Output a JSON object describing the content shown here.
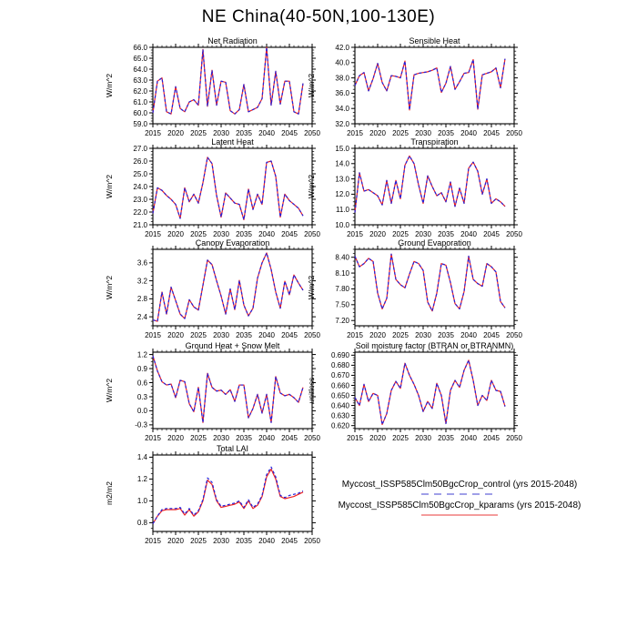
{
  "title": "NE China(40-50N,100-130E)",
  "colors": {
    "control": "#2222dd",
    "kparams": "#ee2222",
    "axis": "#000000",
    "legend_control_sample": "#9f9fe8",
    "legend_kparams_sample": "#f49c9c"
  },
  "legend": {
    "entries": [
      {
        "name": "control",
        "label": "Myccost_ISSP585Clm50BgcCrop_control (yrs 2015-2048)",
        "line_style": "dashed"
      },
      {
        "name": "kparams",
        "label": "Myccost_ISSP585Clm50BgcCrop_kparams (yrs 2015-2048)",
        "line_style": "solid"
      }
    ]
  },
  "x_axis": {
    "min": 2015,
    "max": 2050,
    "tick_step": 5,
    "data_start": 2015,
    "data_end": 2048,
    "ticks": [
      2015,
      2020,
      2025,
      2030,
      2035,
      2040,
      2045,
      2050
    ]
  },
  "chart_data": [
    {
      "id": "net-radiation",
      "type": "line",
      "title": "Net Radiation",
      "ylabel": "W/m^2",
      "ylim": [
        59,
        66
      ],
      "yticks": [
        59,
        60,
        61,
        62,
        63,
        64,
        65,
        66
      ],
      "ytick_labels": [
        "59.0",
        "60.0",
        "61.0",
        "62.0",
        "63.0",
        "64.0",
        "65.0",
        "66.0"
      ],
      "series": [
        {
          "name": "control",
          "values": [
            60.0,
            62.9,
            63.2,
            60.1,
            59.9,
            62.4,
            60.4,
            60.1,
            61.0,
            61.2,
            60.7,
            65.8,
            60.6,
            63.9,
            60.7,
            62.9,
            62.8,
            60.2,
            59.9,
            60.3,
            62.6,
            60.1,
            60.3,
            60.5,
            61.3,
            66.0,
            60.7,
            63.8,
            60.8,
            62.9,
            62.9,
            60.1,
            59.9,
            62.7
          ]
        },
        {
          "name": "kparams",
          "values": [
            60.0,
            62.9,
            63.2,
            60.1,
            59.9,
            62.4,
            60.4,
            60.1,
            61.0,
            61.2,
            60.7,
            65.8,
            60.6,
            63.9,
            60.7,
            62.9,
            62.8,
            60.2,
            59.9,
            60.3,
            62.6,
            60.1,
            60.3,
            60.5,
            61.3,
            66.0,
            60.7,
            63.8,
            60.8,
            62.9,
            62.9,
            60.1,
            59.9,
            62.7
          ]
        }
      ]
    },
    {
      "id": "sensible-heat",
      "type": "line",
      "title": "Sensible Heat",
      "ylabel": "W/m^2",
      "ylim": [
        32,
        42
      ],
      "yticks": [
        32,
        34,
        36,
        38,
        40,
        42
      ],
      "ytick_labels": [
        "32.0",
        "34.0",
        "36.0",
        "38.0",
        "40.0",
        "42.0"
      ],
      "series": [
        {
          "name": "control",
          "values": [
            37.0,
            38.3,
            38.7,
            36.3,
            37.9,
            39.9,
            37.4,
            36.3,
            38.3,
            38.2,
            38.0,
            40.2,
            33.8,
            38.4,
            38.6,
            38.7,
            38.8,
            39.0,
            39.3,
            36.1,
            37.3,
            39.5,
            36.5,
            37.5,
            38.6,
            38.7,
            40.4,
            33.9,
            38.4,
            38.6,
            38.8,
            39.3,
            36.7,
            40.5
          ]
        },
        {
          "name": "kparams",
          "values": [
            37.0,
            38.3,
            38.7,
            36.3,
            37.9,
            39.9,
            37.4,
            36.3,
            38.3,
            38.2,
            38.0,
            40.2,
            33.8,
            38.4,
            38.6,
            38.7,
            38.8,
            39.0,
            39.3,
            36.1,
            37.3,
            39.5,
            36.5,
            37.5,
            38.6,
            38.7,
            40.4,
            33.9,
            38.4,
            38.6,
            38.8,
            39.3,
            36.7,
            40.5
          ]
        }
      ]
    },
    {
      "id": "latent-heat",
      "type": "line",
      "title": "Latent Heat",
      "ylabel": "W/m^2",
      "ylim": [
        21,
        27
      ],
      "yticks": [
        21,
        22,
        23,
        24,
        25,
        26,
        27
      ],
      "ytick_labels": [
        "21.0",
        "22.0",
        "23.0",
        "24.0",
        "25.0",
        "26.0",
        "27.0"
      ],
      "series": [
        {
          "name": "control",
          "values": [
            21.9,
            23.9,
            23.7,
            23.3,
            23.0,
            22.6,
            21.5,
            23.9,
            22.8,
            23.4,
            22.7,
            24.3,
            26.3,
            25.8,
            23.3,
            21.6,
            23.5,
            23.1,
            22.7,
            22.6,
            21.4,
            23.8,
            22.2,
            23.4,
            22.6,
            25.9,
            26.0,
            24.8,
            21.6,
            23.4,
            22.9,
            22.6,
            22.3,
            21.7
          ]
        },
        {
          "name": "kparams",
          "values": [
            21.9,
            23.9,
            23.7,
            23.3,
            23.0,
            22.6,
            21.5,
            23.9,
            22.8,
            23.4,
            22.7,
            24.3,
            26.3,
            25.8,
            23.3,
            21.6,
            23.5,
            23.1,
            22.7,
            22.6,
            21.4,
            23.8,
            22.2,
            23.4,
            22.6,
            25.9,
            26.0,
            24.8,
            21.6,
            23.4,
            22.9,
            22.6,
            22.3,
            21.7
          ]
        }
      ]
    },
    {
      "id": "transpiration",
      "type": "line",
      "title": "Transpiration",
      "ylabel": "W/m^2",
      "ylim": [
        10,
        15
      ],
      "yticks": [
        10,
        11,
        12,
        13,
        14,
        15
      ],
      "ytick_labels": [
        "10.0",
        "11.0",
        "12.0",
        "13.0",
        "14.0",
        "15.0"
      ],
      "series": [
        {
          "name": "control",
          "values": [
            10.8,
            13.4,
            12.2,
            12.3,
            12.1,
            11.9,
            11.3,
            12.9,
            11.4,
            12.9,
            11.7,
            13.9,
            14.5,
            14.0,
            12.6,
            11.4,
            13.2,
            12.5,
            11.9,
            12.1,
            11.5,
            12.8,
            11.2,
            12.4,
            11.4,
            13.7,
            14.1,
            13.5,
            12.0,
            13.0,
            11.4,
            11.7,
            11.5,
            11.2
          ]
        },
        {
          "name": "kparams",
          "values": [
            10.8,
            13.4,
            12.2,
            12.3,
            12.1,
            11.9,
            11.3,
            12.9,
            11.4,
            12.9,
            11.7,
            13.9,
            14.5,
            14.0,
            12.6,
            11.4,
            13.2,
            12.5,
            11.9,
            12.1,
            11.5,
            12.8,
            11.2,
            12.4,
            11.4,
            13.7,
            14.1,
            13.5,
            12.0,
            13.0,
            11.4,
            11.7,
            11.5,
            11.2
          ]
        }
      ]
    },
    {
      "id": "canopy-evaporation",
      "type": "line",
      "title": "Canopy Evaporation",
      "ylabel": "W/m^2",
      "ylim": [
        2.2,
        3.9
      ],
      "yticks": [
        2.4,
        2.8,
        3.2,
        3.6
      ],
      "ytick_labels": [
        "2.4",
        "2.8",
        "3.2",
        "3.6"
      ],
      "series": [
        {
          "name": "control",
          "values": [
            2.33,
            2.3,
            2.95,
            2.46,
            3.06,
            2.76,
            2.46,
            2.36,
            2.78,
            2.62,
            2.55,
            3.1,
            3.66,
            3.56,
            3.2,
            2.86,
            2.46,
            3.02,
            2.56,
            3.21,
            2.66,
            2.42,
            2.59,
            3.26,
            3.6,
            3.82,
            3.45,
            2.95,
            2.59,
            3.19,
            2.89,
            3.33,
            3.15,
            2.99
          ]
        },
        {
          "name": "kparams",
          "values": [
            2.33,
            2.3,
            2.95,
            2.46,
            3.06,
            2.76,
            2.46,
            2.36,
            2.78,
            2.62,
            2.55,
            3.1,
            3.66,
            3.56,
            3.2,
            2.86,
            2.46,
            3.02,
            2.56,
            3.21,
            2.66,
            2.42,
            2.59,
            3.26,
            3.6,
            3.82,
            3.45,
            2.95,
            2.59,
            3.19,
            2.89,
            3.33,
            3.15,
            2.99
          ]
        }
      ]
    },
    {
      "id": "ground-evaporation",
      "type": "line",
      "title": "Ground Evaporation",
      "ylabel": "W/m^2",
      "ylim": [
        7.1,
        8.55
      ],
      "yticks": [
        7.2,
        7.5,
        7.8,
        8.1,
        8.4
      ],
      "ytick_labels": [
        "7.20",
        "7.50",
        "7.80",
        "8.10",
        "8.40"
      ],
      "series": [
        {
          "name": "control",
          "values": [
            8.42,
            8.22,
            8.28,
            8.38,
            8.32,
            7.72,
            7.42,
            7.62,
            8.46,
            7.98,
            7.88,
            7.82,
            8.08,
            8.32,
            8.28,
            8.15,
            7.55,
            7.38,
            7.72,
            8.28,
            8.25,
            7.92,
            7.52,
            7.42,
            7.75,
            8.42,
            7.98,
            7.9,
            7.85,
            8.28,
            8.22,
            8.12,
            7.56,
            7.44
          ]
        },
        {
          "name": "kparams",
          "values": [
            8.42,
            8.22,
            8.28,
            8.38,
            8.32,
            7.72,
            7.42,
            7.62,
            8.46,
            7.98,
            7.88,
            7.82,
            8.08,
            8.32,
            8.28,
            8.15,
            7.55,
            7.38,
            7.72,
            8.28,
            8.25,
            7.92,
            7.52,
            7.42,
            7.75,
            8.42,
            7.98,
            7.9,
            7.85,
            8.28,
            8.22,
            8.12,
            7.56,
            7.44
          ]
        }
      ]
    },
    {
      "id": "ground-heat-snow-melt",
      "type": "line",
      "title": "Ground Heat + Snow Melt",
      "ylabel": "W/m^2",
      "ylim": [
        -0.38,
        1.25
      ],
      "yticks": [
        -0.3,
        0.0,
        0.3,
        0.6,
        0.9,
        1.2
      ],
      "ytick_labels": [
        "-0.3",
        "0.0",
        "0.3",
        "0.6",
        "0.9",
        "1.2"
      ],
      "series": [
        {
          "name": "control",
          "values": [
            1.17,
            0.85,
            0.62,
            0.55,
            0.57,
            0.28,
            0.65,
            0.62,
            0.15,
            -0.02,
            0.5,
            -0.25,
            0.8,
            0.5,
            0.42,
            0.44,
            0.35,
            0.45,
            0.2,
            0.55,
            0.55,
            -0.15,
            0.05,
            0.35,
            -0.05,
            0.35,
            -0.25,
            0.73,
            0.38,
            0.32,
            0.35,
            0.28,
            0.18,
            0.5
          ]
        },
        {
          "name": "kparams",
          "values": [
            1.17,
            0.85,
            0.62,
            0.55,
            0.57,
            0.28,
            0.65,
            0.62,
            0.15,
            -0.02,
            0.5,
            -0.25,
            0.8,
            0.5,
            0.42,
            0.44,
            0.35,
            0.45,
            0.2,
            0.55,
            0.55,
            -0.15,
            0.05,
            0.35,
            -0.05,
            0.35,
            -0.25,
            0.73,
            0.38,
            0.32,
            0.35,
            0.28,
            0.18,
            0.5
          ]
        }
      ]
    },
    {
      "id": "soil-moisture-factor",
      "type": "line",
      "title": "Soil moisture factor (BTRAN or BTRANMN)",
      "ylabel": "unitless",
      "ylim": [
        0.617,
        0.693
      ],
      "yticks": [
        0.62,
        0.63,
        0.64,
        0.65,
        0.66,
        0.67,
        0.68,
        0.69
      ],
      "ytick_labels": [
        "0.620",
        "0.630",
        "0.640",
        "0.650",
        "0.660",
        "0.670",
        "0.680",
        "0.690"
      ],
      "series": [
        {
          "name": "control",
          "values": [
            0.648,
            0.64,
            0.661,
            0.644,
            0.652,
            0.65,
            0.621,
            0.632,
            0.655,
            0.664,
            0.657,
            0.682,
            0.67,
            0.661,
            0.65,
            0.634,
            0.644,
            0.637,
            0.662,
            0.65,
            0.622,
            0.655,
            0.665,
            0.658,
            0.675,
            0.685,
            0.665,
            0.64,
            0.65,
            0.645,
            0.665,
            0.655,
            0.654,
            0.639
          ]
        },
        {
          "name": "kparams",
          "values": [
            0.648,
            0.64,
            0.661,
            0.644,
            0.652,
            0.65,
            0.621,
            0.632,
            0.655,
            0.664,
            0.657,
            0.682,
            0.67,
            0.661,
            0.65,
            0.634,
            0.644,
            0.637,
            0.662,
            0.65,
            0.622,
            0.655,
            0.665,
            0.658,
            0.675,
            0.685,
            0.665,
            0.64,
            0.65,
            0.645,
            0.665,
            0.655,
            0.654,
            0.639
          ]
        }
      ]
    },
    {
      "id": "total-lai",
      "type": "line",
      "title": "Total LAI",
      "ylabel": "m2/m2",
      "ylim": [
        0.72,
        1.42
      ],
      "yticks": [
        0.8,
        1.0,
        1.2,
        1.4
      ],
      "ytick_labels": [
        "0.8",
        "1.0",
        "1.2",
        "1.4"
      ],
      "series": [
        {
          "name": "control",
          "values": [
            0.79,
            0.86,
            0.92,
            0.93,
            0.93,
            0.93,
            0.94,
            0.88,
            0.93,
            0.87,
            0.91,
            1.01,
            1.21,
            1.17,
            1.01,
            0.95,
            0.96,
            0.97,
            0.98,
            1.0,
            0.94,
            1.01,
            0.94,
            0.97,
            1.05,
            1.24,
            1.31,
            1.22,
            1.05,
            1.03,
            1.05,
            1.06,
            1.07,
            1.09
          ]
        },
        {
          "name": "kparams",
          "values": [
            0.79,
            0.86,
            0.91,
            0.92,
            0.92,
            0.92,
            0.93,
            0.87,
            0.92,
            0.86,
            0.9,
            1.0,
            1.19,
            1.15,
            1.0,
            0.94,
            0.95,
            0.96,
            0.97,
            0.99,
            0.93,
            1.0,
            0.93,
            0.96,
            1.04,
            1.22,
            1.29,
            1.2,
            1.04,
            1.02,
            1.03,
            1.04,
            1.06,
            1.08
          ]
        }
      ]
    }
  ]
}
